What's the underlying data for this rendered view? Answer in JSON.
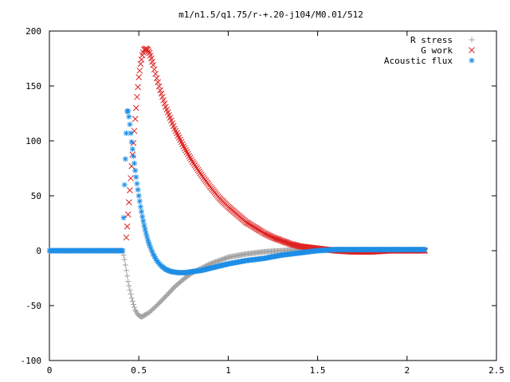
{
  "chart_data": {
    "type": "scatter",
    "title": "m1/n1.5/q1.75/r-+.20-j104/M0.01/512",
    "xlabel": "",
    "ylabel": "",
    "xlim": [
      0,
      2.5
    ],
    "ylim": [
      -100,
      200
    ],
    "x_ticks": [
      "0",
      "0.5",
      "1",
      "1.5",
      "2",
      "2.5"
    ],
    "y_ticks": [
      "-100",
      "-50",
      "0",
      "50",
      "100",
      "150",
      "200"
    ],
    "grid": false,
    "legend_position": "top-right",
    "series": [
      {
        "name": "R stress",
        "marker": "plus",
        "color": "#a0a0a0",
        "x": [
          0.0,
          0.1,
          0.2,
          0.3,
          0.4,
          0.41,
          0.42,
          0.43,
          0.44,
          0.45,
          0.46,
          0.47,
          0.48,
          0.49,
          0.5,
          0.51,
          0.52,
          0.53,
          0.54,
          0.56,
          0.58,
          0.6,
          0.63,
          0.66,
          0.7,
          0.75,
          0.8,
          0.9,
          1.0,
          1.1,
          1.2,
          1.3,
          1.4,
          1.5,
          1.6,
          1.7,
          1.8,
          1.9,
          2.0,
          2.1
        ],
        "y": [
          0,
          0,
          0,
          0,
          0,
          0,
          -8,
          -18,
          -28,
          -36,
          -43,
          -49,
          -54,
          -57,
          -59,
          -60,
          -60,
          -59,
          -58,
          -56,
          -53,
          -50,
          -45,
          -40,
          -33,
          -26,
          -20,
          -12,
          -6,
          -3,
          -1,
          0,
          1,
          1,
          1,
          1,
          1,
          1,
          1,
          1
        ]
      },
      {
        "name": "G work",
        "marker": "cross",
        "color": "#dd2222",
        "x": [
          0.43,
          0.435,
          0.44,
          0.445,
          0.45,
          0.455,
          0.46,
          0.47,
          0.48,
          0.49,
          0.5,
          0.51,
          0.52,
          0.53,
          0.54,
          0.55,
          0.56,
          0.57,
          0.58,
          0.6,
          0.62,
          0.65,
          0.7,
          0.75,
          0.8,
          0.85,
          0.9,
          0.95,
          1.0,
          1.05,
          1.1,
          1.15,
          1.2,
          1.25,
          1.3,
          1.35,
          1.4,
          1.45,
          1.5,
          1.55,
          1.6,
          1.7,
          1.8,
          1.9,
          2.0,
          2.1
        ],
        "y": [
          12,
          22,
          33,
          44,
          55,
          66,
          77,
          98,
          120,
          140,
          158,
          170,
          178,
          183,
          184,
          183,
          180,
          175,
          169,
          157,
          146,
          131,
          111,
          95,
          81,
          69,
          58,
          48,
          40,
          33,
          26,
          21,
          16,
          12,
          9,
          6,
          4,
          3,
          2,
          1,
          0,
          -1,
          -1,
          0,
          0,
          0
        ]
      },
      {
        "name": "Acoustic flux",
        "marker": "star",
        "color": "#1e8ee6",
        "x": [
          0.0,
          0.1,
          0.2,
          0.3,
          0.4,
          0.41,
          0.42,
          0.43,
          0.435,
          0.44,
          0.445,
          0.45,
          0.455,
          0.46,
          0.47,
          0.48,
          0.49,
          0.5,
          0.51,
          0.52,
          0.53,
          0.54,
          0.55,
          0.56,
          0.58,
          0.6,
          0.62,
          0.65,
          0.68,
          0.72,
          0.76,
          0.8,
          0.85,
          0.9,
          0.95,
          1.0,
          1.1,
          1.2,
          1.3,
          1.4,
          1.5,
          1.6,
          1.7,
          1.8,
          1.9,
          2.0,
          2.1
        ],
        "y": [
          0,
          0,
          0,
          0,
          0,
          0,
          60,
          107,
          127,
          127,
          122,
          115,
          107,
          99,
          86,
          73,
          61,
          50,
          40,
          31,
          23,
          16,
          10,
          5,
          -3,
          -9,
          -13,
          -17,
          -19,
          -20,
          -20,
          -19,
          -18,
          -16,
          -14,
          -12,
          -9,
          -7,
          -4,
          -2,
          0,
          1,
          1,
          1,
          1,
          1,
          1
        ]
      }
    ]
  }
}
